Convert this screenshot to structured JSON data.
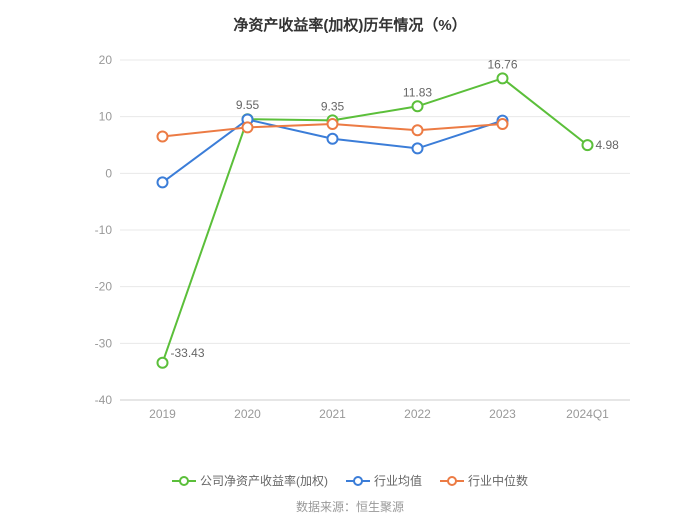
{
  "chart": {
    "type": "line",
    "title": "净资产收益率(加权)历年情况（%）",
    "title_fontsize": 15,
    "title_color": "#333333",
    "background_color": "#ffffff",
    "grid_color": "#e8e8e8",
    "axis_label_color": "#999999",
    "axis_fontsize": 12,
    "categories": [
      "2019",
      "2020",
      "2021",
      "2022",
      "2023",
      "2024Q1"
    ],
    "ylim": [
      -40,
      20
    ],
    "ytick_step": 10,
    "yticks": [
      -40,
      -30,
      -20,
      -10,
      0,
      10,
      20
    ],
    "x_axis_at_y": -40,
    "series": [
      {
        "name": "公司净资产收益率(加权)",
        "color": "#5bbf3a",
        "line_width": 2,
        "marker": "circle-open",
        "marker_size": 5,
        "marker_fill": "#ffffff",
        "show_labels": true,
        "values": [
          -33.43,
          9.55,
          9.35,
          11.83,
          16.76,
          4.98
        ]
      },
      {
        "name": "行业均值",
        "color": "#3b7dd8",
        "line_width": 2,
        "marker": "circle-open",
        "marker_size": 5,
        "marker_fill": "#ffffff",
        "show_labels": false,
        "values": [
          -1.6,
          9.5,
          6.1,
          4.4,
          9.3,
          null
        ]
      },
      {
        "name": "行业中位数",
        "color": "#ec7b44",
        "line_width": 2,
        "marker": "circle-open",
        "marker_size": 5,
        "marker_fill": "#ffffff",
        "show_labels": false,
        "values": [
          6.5,
          8.1,
          8.7,
          7.6,
          8.7,
          null
        ]
      }
    ]
  },
  "footer": "数据来源：恒生聚源"
}
